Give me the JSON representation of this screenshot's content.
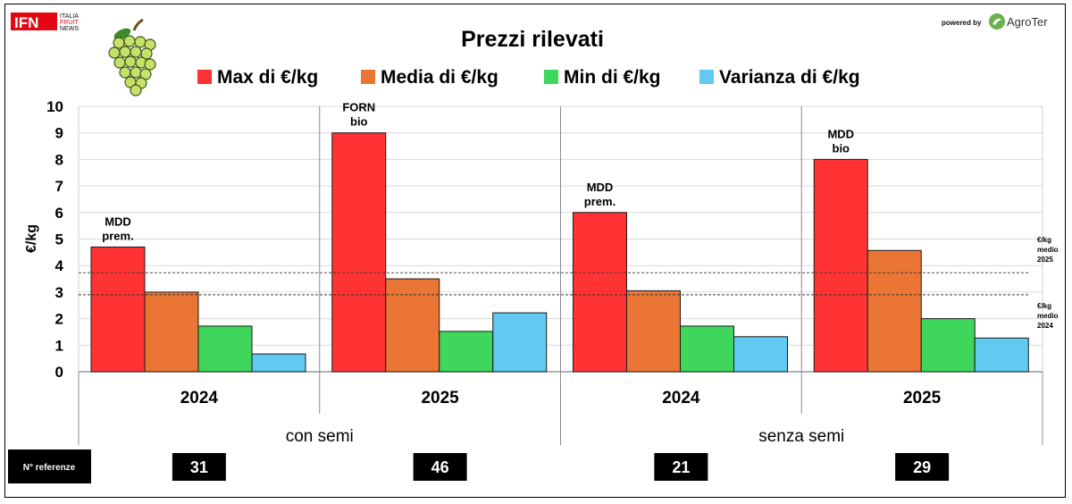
{
  "brand": {
    "ifn_letters": "IFN",
    "ifn_lines": [
      "ITALIA",
      "FRUIT",
      "NEWS"
    ],
    "powered_by": "powered by",
    "agroter": "AgroTer"
  },
  "chart_data": {
    "type": "bar",
    "title": "Prezzi rilevati",
    "ylabel": "€/kg",
    "xlabel": "",
    "ylim": [
      0,
      10
    ],
    "yticks": [
      0,
      1,
      2,
      3,
      4,
      5,
      6,
      7,
      8,
      9,
      10
    ],
    "grid": true,
    "legend_position": "top",
    "categories": [
      "2024",
      "2025",
      "2024",
      "2025"
    ],
    "groups": [
      {
        "label": "con semi",
        "categories": [
          0,
          1
        ]
      },
      {
        "label": "senza semi",
        "categories": [
          2,
          3
        ]
      }
    ],
    "series": [
      {
        "name": "Max di €/kg",
        "color": "#ff3333",
        "values": [
          4.7,
          9.0,
          6.0,
          8.0
        ]
      },
      {
        "name": "Media di €/kg",
        "color": "#ea7535",
        "values": [
          3.0,
          3.5,
          3.05,
          4.57
        ]
      },
      {
        "name": "Min di €/kg",
        "color": "#3fd65c",
        "values": [
          1.72,
          1.52,
          1.72,
          2.0
        ]
      },
      {
        "name": "Varianza di €/kg",
        "color": "#62c9f1",
        "values": [
          0.67,
          2.22,
          1.32,
          1.27
        ]
      }
    ],
    "max_bar_labels": [
      [
        "MDD",
        "prem."
      ],
      [
        "FORN",
        "bio"
      ],
      [
        "MDD",
        "prem."
      ],
      [
        "MDD",
        "bio"
      ]
    ],
    "reference_lines": [
      {
        "value": 3.73,
        "label": [
          "€/kg",
          "medio",
          "2025"
        ]
      },
      {
        "value": 2.9,
        "label": [
          "€/kg",
          "medio",
          "2024"
        ]
      }
    ],
    "referenze": {
      "label": "N° referenze",
      "values": [
        "31",
        "46",
        "21",
        "29"
      ]
    }
  }
}
